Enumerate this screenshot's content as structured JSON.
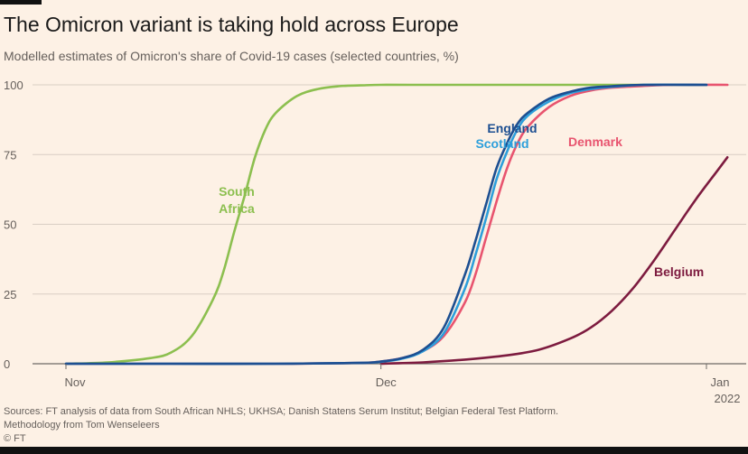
{
  "header": {
    "title": "The Omicron variant is taking hold across Europe",
    "subtitle": "Modelled estimates of Omicron's share of Covid-19 cases (selected countries, %)"
  },
  "footer": {
    "sources": "Sources: FT analysis of data from South African NHLS; UKHSA; Danish Statens Serum Institut; Belgian Federal Test Platform.",
    "methodology": "Methodology from Tom Wenseleers",
    "copyright": "© FT"
  },
  "chart_data": {
    "type": "line",
    "title": "The Omicron variant is taking hold across Europe",
    "subtitle": "Modelled estimates of Omicron's share of Covid-19 cases (selected countries, %)",
    "xlabel": "",
    "ylabel": "%",
    "x_unit": "days since 1 Nov 2021",
    "xlim": [
      0,
      63
    ],
    "ylim": [
      0,
      100
    ],
    "y_ticks": [
      0,
      25,
      50,
      75,
      100
    ],
    "x_ticks": [
      {
        "value": 0,
        "label": "Nov"
      },
      {
        "value": 30,
        "label": "Dec"
      },
      {
        "value": 61,
        "label": "Jan",
        "sublabel": "2022"
      }
    ],
    "grid": true,
    "series": [
      {
        "name": "South Africa",
        "label_lines": [
          "South",
          "Africa"
        ],
        "color": "#8cbf4f",
        "x": [
          0,
          4,
          8,
          10,
          12,
          14,
          15,
          16,
          17,
          18,
          19,
          20,
          22,
          24,
          26,
          28,
          30,
          33,
          40,
          50,
          61
        ],
        "y": [
          0,
          0.5,
          2,
          4,
          10,
          23,
          33,
          47,
          60,
          74,
          84,
          90,
          96,
          98.5,
          99.5,
          99.8,
          100,
          100,
          100,
          100,
          100
        ]
      },
      {
        "name": "England",
        "label_lines": [
          "England"
        ],
        "color": "#1d4f91",
        "x": [
          0,
          10,
          20,
          28,
          30,
          32,
          34,
          36,
          38,
          39,
          40,
          41,
          42,
          43,
          44,
          46,
          48,
          50,
          52,
          55,
          61
        ],
        "y": [
          0,
          0,
          0,
          0.3,
          0.8,
          2,
          5,
          13,
          32,
          44,
          57,
          70,
          79,
          86,
          90,
          95,
          97.5,
          99,
          99.5,
          100,
          100
        ]
      },
      {
        "name": "Scotland",
        "label_lines": [
          "Scotland"
        ],
        "color": "#2d9fdb",
        "x": [
          0,
          10,
          20,
          28,
          30,
          32,
          34,
          36,
          38,
          39,
          40,
          41,
          42,
          43,
          44,
          46,
          48,
          50,
          52,
          55,
          61
        ],
        "y": [
          0,
          0,
          0,
          0.3,
          0.7,
          1.8,
          4.5,
          11,
          27,
          39,
          52,
          66,
          76,
          84,
          89,
          94,
          97,
          98.5,
          99.3,
          100,
          100
        ]
      },
      {
        "name": "Denmark",
        "label_lines": [
          "Denmark"
        ],
        "color": "#e8546f",
        "x": [
          0,
          10,
          20,
          28,
          30,
          32,
          34,
          36,
          38,
          39,
          40,
          41,
          42,
          43,
          44,
          46,
          48,
          50,
          52,
          55,
          58,
          63
        ],
        "y": [
          0,
          0,
          0,
          0.3,
          0.8,
          2,
          4.5,
          10,
          22,
          32,
          45,
          58,
          70,
          79,
          85,
          92,
          96,
          98,
          99,
          99.6,
          100,
          100
        ]
      },
      {
        "name": "Belgium",
        "label_lines": [
          "Belgium"
        ],
        "color": "#7d1b3f",
        "x": [
          30,
          34,
          38,
          42,
          45,
          48,
          50,
          52,
          54,
          56,
          58,
          60,
          62,
          63
        ],
        "y": [
          0,
          0.5,
          1.5,
          3,
          5,
          9,
          13,
          19,
          27,
          37,
          48,
          59,
          69,
          74
        ]
      }
    ]
  }
}
